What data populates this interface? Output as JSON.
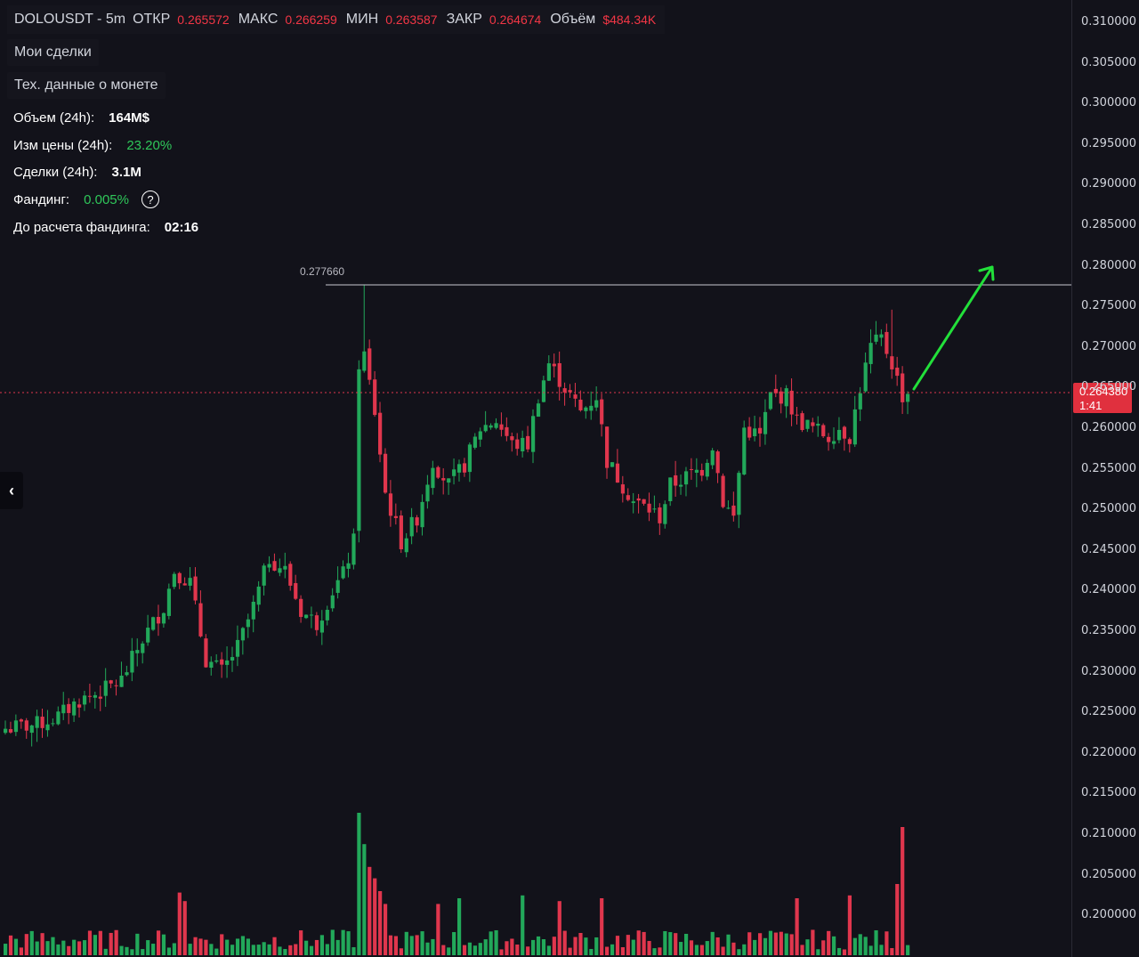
{
  "header": {
    "symbol": "DOLOUSDT - 5m",
    "open_label": "ОТКР",
    "open_value": "0.265572",
    "high_label": "МАКС",
    "high_value": "0.266259",
    "low_label": "МИН",
    "low_value": "0.263587",
    "close_label": "ЗАКР",
    "close_value": "0.264674",
    "volume_label": "Объём",
    "volume_value": "$484.34K"
  },
  "menu": {
    "my_trades": "Мои сделки",
    "coin_data": "Тех. данные о монете"
  },
  "stats": [
    {
      "label": "Объем (24h):",
      "value": "164M$",
      "color": "#ffffff"
    },
    {
      "label": "Изм цены  (24h):",
      "value": "23.20%",
      "color": "#2fc75a"
    },
    {
      "label": "Сделки (24h):",
      "value": "3.1M",
      "color": "#ffffff"
    },
    {
      "label": "Фандинг:",
      "value": "0.005%",
      "color": "#2fc75a"
    },
    {
      "label": "До расчета фандинга:",
      "value": "02:16",
      "color": "#ffffff"
    }
  ],
  "help_icon": "?",
  "collapse_icon": "‹",
  "current_price": {
    "value": "0.264380",
    "countdown": "1:41"
  },
  "level_line": {
    "value": "0.277660",
    "price": 0.27766
  },
  "colors": {
    "up": "#22a85a",
    "down": "#e0364d",
    "arrow": "#22e03a",
    "background": "#12121a"
  },
  "chart_data": {
    "type": "candlestick",
    "title": "",
    "interval": "5m",
    "ylim": [
      0.1965,
      0.3115
    ],
    "y_ticks": [
      "0.310000",
      "0.305000",
      "0.300000",
      "0.295000",
      "0.290000",
      "0.285000",
      "0.280000",
      "0.275000",
      "0.270000",
      "0.265000",
      "0.260000",
      "0.255000",
      "0.250000",
      "0.245000",
      "0.240000",
      "0.235000",
      "0.230000",
      "0.225000",
      "0.220000",
      "0.215000",
      "0.210000",
      "0.205000",
      "0.200000"
    ],
    "y_tick_values": [
      0.31,
      0.305,
      0.3,
      0.295,
      0.29,
      0.285,
      0.28,
      0.275,
      0.27,
      0.265,
      0.26,
      0.255,
      0.25,
      0.245,
      0.24,
      0.235,
      0.23,
      0.225,
      0.22,
      0.215,
      0.21,
      0.205,
      0.2
    ],
    "close_anchors": [
      [
        0,
        0.223
      ],
      [
        6,
        0.2235
      ],
      [
        10,
        0.2245
      ],
      [
        14,
        0.2265
      ],
      [
        18,
        0.2275
      ],
      [
        22,
        0.229
      ],
      [
        26,
        0.234
      ],
      [
        30,
        0.238
      ],
      [
        32,
        0.2425
      ],
      [
        35,
        0.241
      ],
      [
        38,
        0.2315
      ],
      [
        41,
        0.23
      ],
      [
        44,
        0.233
      ],
      [
        47,
        0.238
      ],
      [
        50,
        0.244
      ],
      [
        53,
        0.2425
      ],
      [
        56,
        0.2375
      ],
      [
        59,
        0.236
      ],
      [
        62,
        0.24
      ],
      [
        64,
        0.242
      ],
      [
        66,
        0.246
      ],
      [
        67,
        0.268
      ],
      [
        68,
        0.269
      ],
      [
        70,
        0.262
      ],
      [
        72,
        0.252
      ],
      [
        75,
        0.246
      ],
      [
        78,
        0.249
      ],
      [
        81,
        0.256
      ],
      [
        84,
        0.253
      ],
      [
        87,
        0.2555
      ],
      [
        90,
        0.26
      ],
      [
        93,
        0.261
      ],
      [
        96,
        0.258
      ],
      [
        99,
        0.258
      ],
      [
        101,
        0.264
      ],
      [
        103,
        0.268
      ],
      [
        105,
        0.266
      ],
      [
        107,
        0.264
      ],
      [
        109,
        0.262
      ],
      [
        112,
        0.264
      ],
      [
        114,
        0.256
      ],
      [
        117,
        0.253
      ],
      [
        119,
        0.251
      ],
      [
        122,
        0.25
      ],
      [
        124,
        0.249
      ],
      [
        126,
        0.253
      ],
      [
        129,
        0.254
      ],
      [
        132,
        0.255
      ],
      [
        134,
        0.258
      ],
      [
        136,
        0.251
      ],
      [
        138,
        0.249
      ],
      [
        140,
        0.26
      ],
      [
        143,
        0.259
      ],
      [
        145,
        0.264
      ],
      [
        148,
        0.264
      ],
      [
        150,
        0.261
      ],
      [
        153,
        0.26
      ],
      [
        156,
        0.259
      ],
      [
        158,
        0.26
      ],
      [
        160,
        0.259
      ],
      [
        162,
        0.265
      ],
      [
        164,
        0.27
      ],
      [
        166,
        0.271
      ],
      [
        168,
        0.268
      ],
      [
        170,
        0.264
      ],
      [
        171,
        0.2644
      ]
    ],
    "volume_spikes": [
      [
        67,
        1.0
      ],
      [
        68,
        0.78
      ],
      [
        69,
        0.62
      ],
      [
        70,
        0.54
      ],
      [
        71,
        0.45
      ],
      [
        72,
        0.36
      ],
      [
        33,
        0.44
      ],
      [
        34,
        0.38
      ],
      [
        170,
        0.9
      ],
      [
        169,
        0.5
      ],
      [
        150,
        0.4
      ],
      [
        160,
        0.42
      ],
      [
        113,
        0.4
      ],
      [
        98,
        0.42
      ],
      [
        105,
        0.38
      ],
      [
        82,
        0.36
      ],
      [
        86,
        0.4
      ]
    ]
  }
}
